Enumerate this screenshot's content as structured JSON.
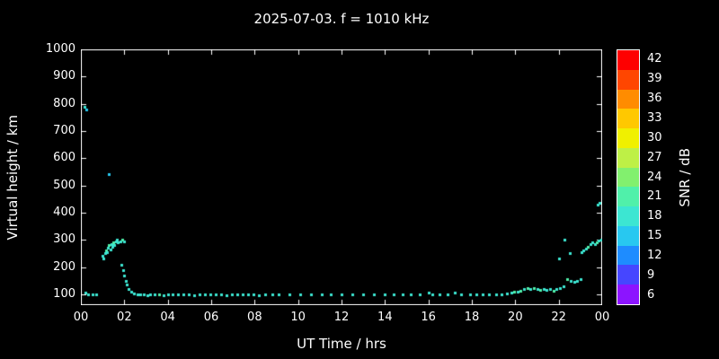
{
  "chart_data": {
    "type": "scatter",
    "title": "2025-07-03. f = 1010 kHz",
    "xlabel": "UT Time / hrs",
    "ylabel": "Virtual height / km",
    "xlim": [
      0,
      24
    ],
    "ylim": [
      60,
      1000
    ],
    "grid": false,
    "x_tick_values": [
      0,
      2,
      4,
      6,
      8,
      10,
      12,
      14,
      16,
      18,
      20,
      22,
      24
    ],
    "x_tick_labels": [
      "00",
      "02",
      "04",
      "06",
      "08",
      "10",
      "12",
      "14",
      "16",
      "18",
      "20",
      "22",
      "00"
    ],
    "y_tick_values": [
      100,
      200,
      300,
      400,
      500,
      600,
      700,
      800,
      900,
      1000
    ],
    "point_format": [
      "ut_hours",
      "virtual_height_km",
      "snr_db"
    ],
    "points": [
      [
        0.15,
        790,
        18
      ],
      [
        0.25,
        780,
        15
      ],
      [
        0.2,
        105,
        18
      ],
      [
        0.35,
        100,
        18
      ],
      [
        0.55,
        100,
        18
      ],
      [
        0.7,
        98,
        18
      ],
      [
        1.0,
        240,
        18
      ],
      [
        1.05,
        230,
        18
      ],
      [
        1.1,
        250,
        18
      ],
      [
        1.15,
        260,
        21
      ],
      [
        1.2,
        255,
        18
      ],
      [
        1.25,
        270,
        18
      ],
      [
        1.3,
        280,
        21
      ],
      [
        1.35,
        265,
        18
      ],
      [
        1.4,
        285,
        18
      ],
      [
        1.45,
        275,
        18
      ],
      [
        1.5,
        290,
        21
      ],
      [
        1.55,
        280,
        18
      ],
      [
        1.6,
        295,
        18
      ],
      [
        1.65,
        300,
        18
      ],
      [
        1.7,
        290,
        18
      ],
      [
        1.8,
        295,
        18
      ],
      [
        1.9,
        300,
        21
      ],
      [
        2.0,
        295,
        18
      ],
      [
        1.3,
        540,
        15
      ],
      [
        1.85,
        210,
        18
      ],
      [
        1.95,
        190,
        18
      ],
      [
        2.0,
        170,
        18
      ],
      [
        2.05,
        150,
        18
      ],
      [
        2.1,
        135,
        18
      ],
      [
        2.2,
        118,
        18
      ],
      [
        2.3,
        108,
        18
      ],
      [
        2.45,
        102,
        18
      ],
      [
        2.6,
        100,
        18
      ],
      [
        2.75,
        98,
        18
      ],
      [
        2.9,
        100,
        18
      ],
      [
        3.05,
        96,
        18
      ],
      [
        3.2,
        100,
        18
      ],
      [
        3.4,
        98,
        18
      ],
      [
        3.6,
        100,
        21
      ],
      [
        3.8,
        97,
        18
      ],
      [
        4.0,
        100,
        18
      ],
      [
        4.2,
        98,
        18
      ],
      [
        4.45,
        100,
        18
      ],
      [
        4.7,
        98,
        18
      ],
      [
        4.95,
        100,
        18
      ],
      [
        5.2,
        97,
        18
      ],
      [
        5.45,
        100,
        18
      ],
      [
        5.7,
        98,
        18
      ],
      [
        5.95,
        100,
        18
      ],
      [
        6.2,
        98,
        18
      ],
      [
        6.45,
        100,
        18
      ],
      [
        6.7,
        97,
        18
      ],
      [
        6.95,
        100,
        18
      ],
      [
        7.2,
        98,
        18
      ],
      [
        7.45,
        100,
        18
      ],
      [
        7.7,
        98,
        18
      ],
      [
        7.95,
        100,
        18
      ],
      [
        8.2,
        97,
        18
      ],
      [
        8.5,
        100,
        18
      ],
      [
        8.8,
        98,
        18
      ],
      [
        9.1,
        100,
        18
      ],
      [
        9.6,
        98,
        18
      ],
      [
        10.1,
        100,
        18
      ],
      [
        10.6,
        98,
        18
      ],
      [
        11.1,
        100,
        18
      ],
      [
        11.5,
        98,
        18
      ],
      [
        12.0,
        100,
        18
      ],
      [
        12.5,
        98,
        18
      ],
      [
        13.0,
        100,
        18
      ],
      [
        13.5,
        98,
        18
      ],
      [
        14.0,
        100,
        18
      ],
      [
        14.4,
        98,
        18
      ],
      [
        14.8,
        100,
        18
      ],
      [
        15.2,
        98,
        18
      ],
      [
        15.6,
        100,
        18
      ],
      [
        16.0,
        105,
        18
      ],
      [
        16.2,
        100,
        18
      ],
      [
        16.5,
        98,
        18
      ],
      [
        16.9,
        100,
        18
      ],
      [
        17.2,
        105,
        18
      ],
      [
        17.5,
        100,
        18
      ],
      [
        17.9,
        98,
        18
      ],
      [
        18.2,
        100,
        18
      ],
      [
        18.5,
        98,
        18
      ],
      [
        18.8,
        100,
        18
      ],
      [
        19.1,
        98,
        18
      ],
      [
        19.35,
        100,
        18
      ],
      [
        19.6,
        102,
        18
      ],
      [
        19.8,
        105,
        18
      ],
      [
        19.95,
        108,
        21
      ],
      [
        20.1,
        110,
        18
      ],
      [
        20.25,
        112,
        21
      ],
      [
        20.4,
        118,
        18
      ],
      [
        20.55,
        122,
        21
      ],
      [
        20.7,
        118,
        18
      ],
      [
        20.85,
        124,
        21
      ],
      [
        21.0,
        120,
        18
      ],
      [
        21.15,
        116,
        21
      ],
      [
        21.3,
        120,
        18
      ],
      [
        21.45,
        115,
        18
      ],
      [
        21.6,
        118,
        18
      ],
      [
        21.75,
        114,
        21
      ],
      [
        21.9,
        118,
        18
      ],
      [
        22.05,
        124,
        18
      ],
      [
        22.2,
        130,
        18
      ],
      [
        22.0,
        230,
        18
      ],
      [
        22.25,
        300,
        18
      ],
      [
        22.5,
        250,
        18
      ],
      [
        22.4,
        155,
        21
      ],
      [
        22.55,
        150,
        18
      ],
      [
        22.7,
        145,
        18
      ],
      [
        22.85,
        150,
        18
      ],
      [
        23.0,
        155,
        18
      ],
      [
        23.05,
        255,
        18
      ],
      [
        23.15,
        260,
        18
      ],
      [
        23.25,
        268,
        18
      ],
      [
        23.35,
        275,
        21
      ],
      [
        23.45,
        285,
        18
      ],
      [
        23.55,
        290,
        18
      ],
      [
        23.65,
        285,
        18
      ],
      [
        23.75,
        292,
        21
      ],
      [
        23.85,
        296,
        18
      ],
      [
        23.95,
        300,
        18
      ],
      [
        23.8,
        430,
        18
      ],
      [
        23.88,
        436,
        18
      ]
    ]
  },
  "colorbar": {
    "label": "SNR / dB",
    "tick_values": [
      42,
      39,
      36,
      33,
      30,
      27,
      24,
      21,
      18,
      15,
      12,
      9,
      6
    ],
    "value_range": [
      4.5,
      43.5
    ],
    "segments": [
      {
        "value": 42,
        "color": "#fe0000"
      },
      {
        "value": 39,
        "color": "#ff4600"
      },
      {
        "value": 36,
        "color": "#ff8c00"
      },
      {
        "value": 33,
        "color": "#ffc800"
      },
      {
        "value": 30,
        "color": "#f0f000"
      },
      {
        "value": 27,
        "color": "#bef046"
      },
      {
        "value": 24,
        "color": "#82f06e"
      },
      {
        "value": 21,
        "color": "#50f0aa"
      },
      {
        "value": 18,
        "color": "#3ce6d2"
      },
      {
        "value": 15,
        "color": "#28c8f0"
      },
      {
        "value": 12,
        "color": "#1e8cff"
      },
      {
        "value": 9,
        "color": "#4646ff"
      },
      {
        "value": 6,
        "color": "#8c14ff"
      }
    ]
  },
  "colors": {
    "background": "#000000",
    "foreground": "#ffffff"
  }
}
